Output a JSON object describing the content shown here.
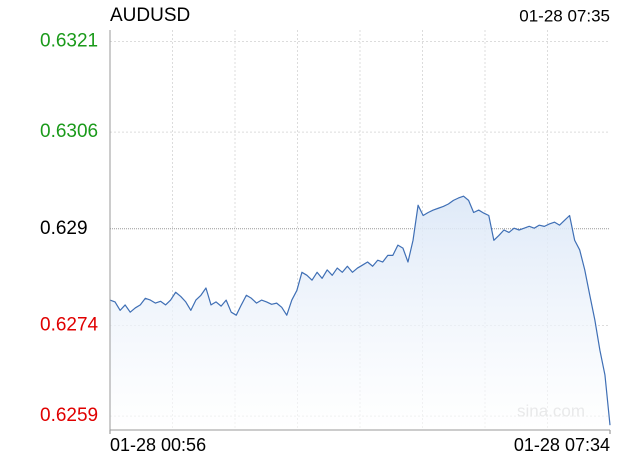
{
  "chart_data": {
    "type": "line",
    "title": "AUDUSD",
    "timestamp": "01-28 07:35",
    "watermark": "sina.com",
    "color": "#3f6fb5",
    "area_color": "#dbe7f7",
    "reference": 0.629,
    "up_color": "#1a9a1a",
    "down_color": "#e00000",
    "flat_color": "#000000",
    "grid": true,
    "xlim": [
      0,
      99
    ],
    "xticks": [
      {
        "value": 0,
        "label": "01-28 00:56"
      },
      {
        "value": 99,
        "label": "01-28 07:34"
      }
    ],
    "ylim": [
      0.62567,
      0.63229
    ],
    "yticks": [
      0.6259,
      0.6274,
      0.629,
      0.6306,
      0.6321
    ],
    "values": [
      0.62782,
      0.62779,
      0.62765,
      0.62774,
      0.62762,
      0.62769,
      0.62774,
      0.62785,
      0.62782,
      0.62777,
      0.6278,
      0.62774,
      0.62782,
      0.62795,
      0.62788,
      0.62779,
      0.62765,
      0.62782,
      0.6279,
      0.62802,
      0.62774,
      0.62779,
      0.62772,
      0.62782,
      0.62762,
      0.62757,
      0.62774,
      0.6279,
      0.62785,
      0.62777,
      0.62782,
      0.62779,
      0.62775,
      0.62777,
      0.6277,
      0.62757,
      0.62782,
      0.62798,
      0.62828,
      0.62823,
      0.62815,
      0.62828,
      0.62818,
      0.62832,
      0.62823,
      0.62835,
      0.62828,
      0.62838,
      0.62828,
      0.62835,
      0.6284,
      0.62845,
      0.62838,
      0.62848,
      0.62845,
      0.62856,
      0.62856,
      0.62873,
      0.62868,
      0.62845,
      0.62881,
      0.62939,
      0.62922,
      0.62927,
      0.62931,
      0.62934,
      0.62937,
      0.62941,
      0.62947,
      0.62951,
      0.62954,
      0.62947,
      0.62927,
      0.62931,
      0.62926,
      0.62922,
      0.62881,
      0.62889,
      0.62898,
      0.62894,
      0.62901,
      0.62898,
      0.62901,
      0.62904,
      0.62901,
      0.62906,
      0.62904,
      0.62908,
      0.62911,
      0.62906,
      0.62914,
      0.62922,
      0.62881,
      0.62865,
      0.62832,
      0.6279,
      0.62749,
      0.62699,
      0.62658,
      0.62575
    ]
  }
}
